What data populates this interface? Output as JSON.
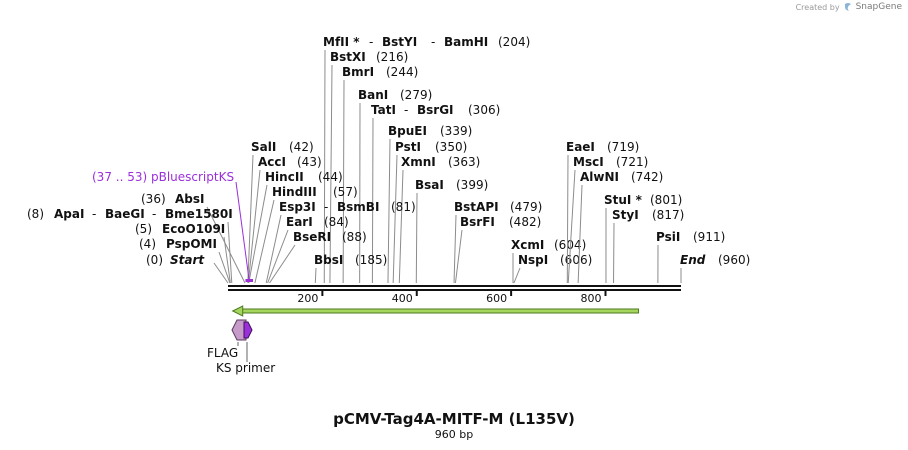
{
  "credit": {
    "text": "Created by",
    "brand": "SnapGene"
  },
  "title": "pCMV-Tag4A-MITF-M (L135V)",
  "subtitle": "960 bp",
  "sequence": {
    "length": 960,
    "ticks": [
      200,
      400,
      600,
      800
    ]
  },
  "enzymes": [
    {
      "id": "mfli",
      "names": [
        "MfII *",
        "BstYI",
        "BamHI"
      ],
      "pos_label": "(204)",
      "pos": 204
    },
    {
      "id": "bstxi",
      "names": [
        "BstXI"
      ],
      "pos_label": "(216)",
      "pos": 216
    },
    {
      "id": "bmri",
      "names": [
        "BmrI"
      ],
      "pos_label": "(244)",
      "pos": 244
    },
    {
      "id": "bani",
      "names": [
        "BanI"
      ],
      "pos_label": "(279)",
      "pos": 279
    },
    {
      "id": "tati",
      "names": [
        "TatI",
        "BsrGI"
      ],
      "pos_label": "(306)",
      "pos": 306
    },
    {
      "id": "bpuei",
      "names": [
        "BpuEI"
      ],
      "pos_label": "(339)",
      "pos": 339
    },
    {
      "id": "psti",
      "names": [
        "PstI"
      ],
      "pos_label": "(350)",
      "pos": 350
    },
    {
      "id": "xmni",
      "names": [
        "XmnI"
      ],
      "pos_label": "(363)",
      "pos": 363
    },
    {
      "id": "bsai",
      "names": [
        "BsaI"
      ],
      "pos_label": "(399)",
      "pos": 399
    },
    {
      "id": "sali",
      "names": [
        "SalI"
      ],
      "pos_label": "(42)",
      "pos": 42
    },
    {
      "id": "acci",
      "names": [
        "AccI"
      ],
      "pos_label": "(43)",
      "pos": 43
    },
    {
      "id": "hincii",
      "names": [
        "HincII"
      ],
      "pos_label": "(44)",
      "pos": 44
    },
    {
      "id": "hindiii",
      "names": [
        "HindIII"
      ],
      "pos_label": "(57)",
      "pos": 57
    },
    {
      "id": "esp3i",
      "names": [
        "Esp3I",
        "BsmBI"
      ],
      "pos_label": "(81)",
      "pos": 81
    },
    {
      "id": "eari",
      "names": [
        "EarI"
      ],
      "pos_label": "(84)",
      "pos": 84
    },
    {
      "id": "beseri",
      "names": [
        "BseRI"
      ],
      "pos_label": "(88)",
      "pos": 88
    },
    {
      "id": "bbsi",
      "names": [
        "BbsI"
      ],
      "pos_label": "(185)",
      "pos": 185
    },
    {
      "id": "absi",
      "names": [
        "AbsI"
      ],
      "pos_label": "(36)",
      "pos": 36
    },
    {
      "id": "apai",
      "names": [
        "ApaI",
        "BaeGI",
        "Bme1580I"
      ],
      "pos_label": "(8)",
      "pos": 8
    },
    {
      "id": "ecoo109i",
      "names": [
        "EcoO109I"
      ],
      "pos_label": "(5)",
      "pos": 5
    },
    {
      "id": "pspomi",
      "names": [
        "PspOMI"
      ],
      "pos_label": "(4)",
      "pos": 4
    },
    {
      "id": "bstapi",
      "names": [
        "BstAPI"
      ],
      "pos_label": "(479)",
      "pos": 479
    },
    {
      "id": "bsrfi",
      "names": [
        "BsrFI"
      ],
      "pos_label": "(482)",
      "pos": 482
    },
    {
      "id": "xcmi",
      "names": [
        "XcmI"
      ],
      "pos_label": "(604)",
      "pos": 604
    },
    {
      "id": "nspi",
      "names": [
        "NspI"
      ],
      "pos_label": "(606)",
      "pos": 606
    },
    {
      "id": "eaei",
      "names": [
        "EaeI"
      ],
      "pos_label": "(719)",
      "pos": 719
    },
    {
      "id": "msci",
      "names": [
        "MscI"
      ],
      "pos_label": "(721)",
      "pos": 721
    },
    {
      "id": "alwni",
      "names": [
        "AlwNI"
      ],
      "pos_label": "(742)",
      "pos": 742
    },
    {
      "id": "stui",
      "names": [
        "StuI *"
      ],
      "pos_label": "(801)",
      "pos": 801
    },
    {
      "id": "styi",
      "names": [
        "StyI"
      ],
      "pos_label": "(817)",
      "pos": 817
    },
    {
      "id": "psii",
      "names": [
        "PsiI"
      ],
      "pos_label": "(911)",
      "pos": 911
    }
  ],
  "ends": [
    {
      "id": "start",
      "name": "Start",
      "pos_label": "(0)",
      "pos": 0
    },
    {
      "id": "end",
      "name": "End",
      "pos_label": "(960)",
      "pos": 960
    }
  ],
  "primer_site": {
    "label": "(37 .. 53)  pBluescriptKS",
    "start": 37,
    "end": 53,
    "color": "#9b30d9"
  },
  "features": [
    {
      "id": "orf",
      "type": "arrow",
      "start": 10,
      "end": 870,
      "direction": "reverse",
      "color": "#a4d65e"
    },
    {
      "id": "flag",
      "type": "flag",
      "label": "FLAG",
      "start": 0,
      "end": 22,
      "color": "#c79bc9"
    },
    {
      "id": "ks",
      "type": "primer",
      "label": "KS primer",
      "start": 37,
      "end": 53,
      "color": "#9b30d9"
    }
  ]
}
